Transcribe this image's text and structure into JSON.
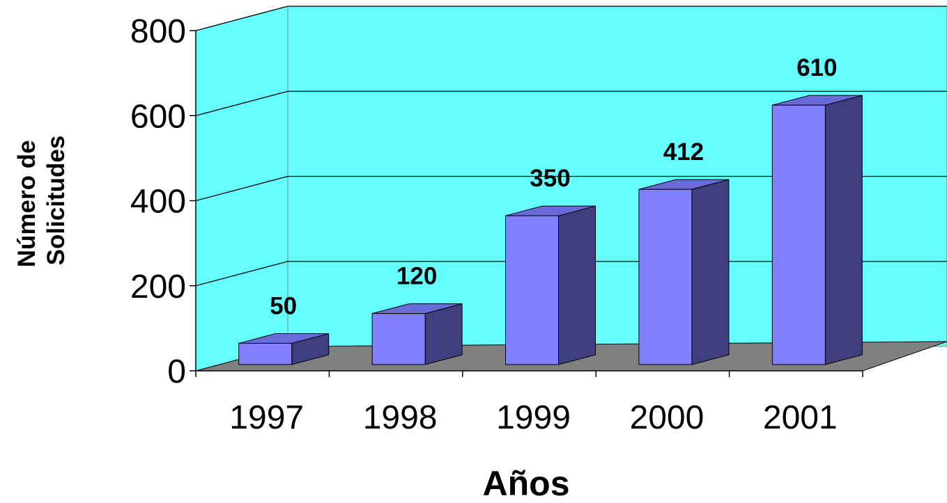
{
  "chart_data": {
    "type": "bar",
    "style": "3d-column",
    "categories": [
      "1997",
      "1998",
      "1999",
      "2000",
      "2001"
    ],
    "values": [
      50,
      120,
      350,
      412,
      610
    ],
    "data_labels": [
      "50",
      "120",
      "350",
      "412",
      "610"
    ],
    "title": "",
    "xlabel": "Años",
    "ylabel_lines": [
      "Número de",
      "Solicitudes"
    ],
    "ylim": [
      0,
      800
    ],
    "yticks": [
      0,
      200,
      400,
      600,
      800
    ],
    "ytick_labels": [
      "0",
      "200",
      "400",
      "600",
      "800"
    ],
    "grid": true,
    "legend": "none",
    "colors": {
      "back_wall": "#66FFFF",
      "floor": "#808080",
      "bar_front": "#8080FF",
      "bar_side": "#3F3F7F",
      "bar_top": "#6A6AD9",
      "outline": "#000000"
    }
  }
}
